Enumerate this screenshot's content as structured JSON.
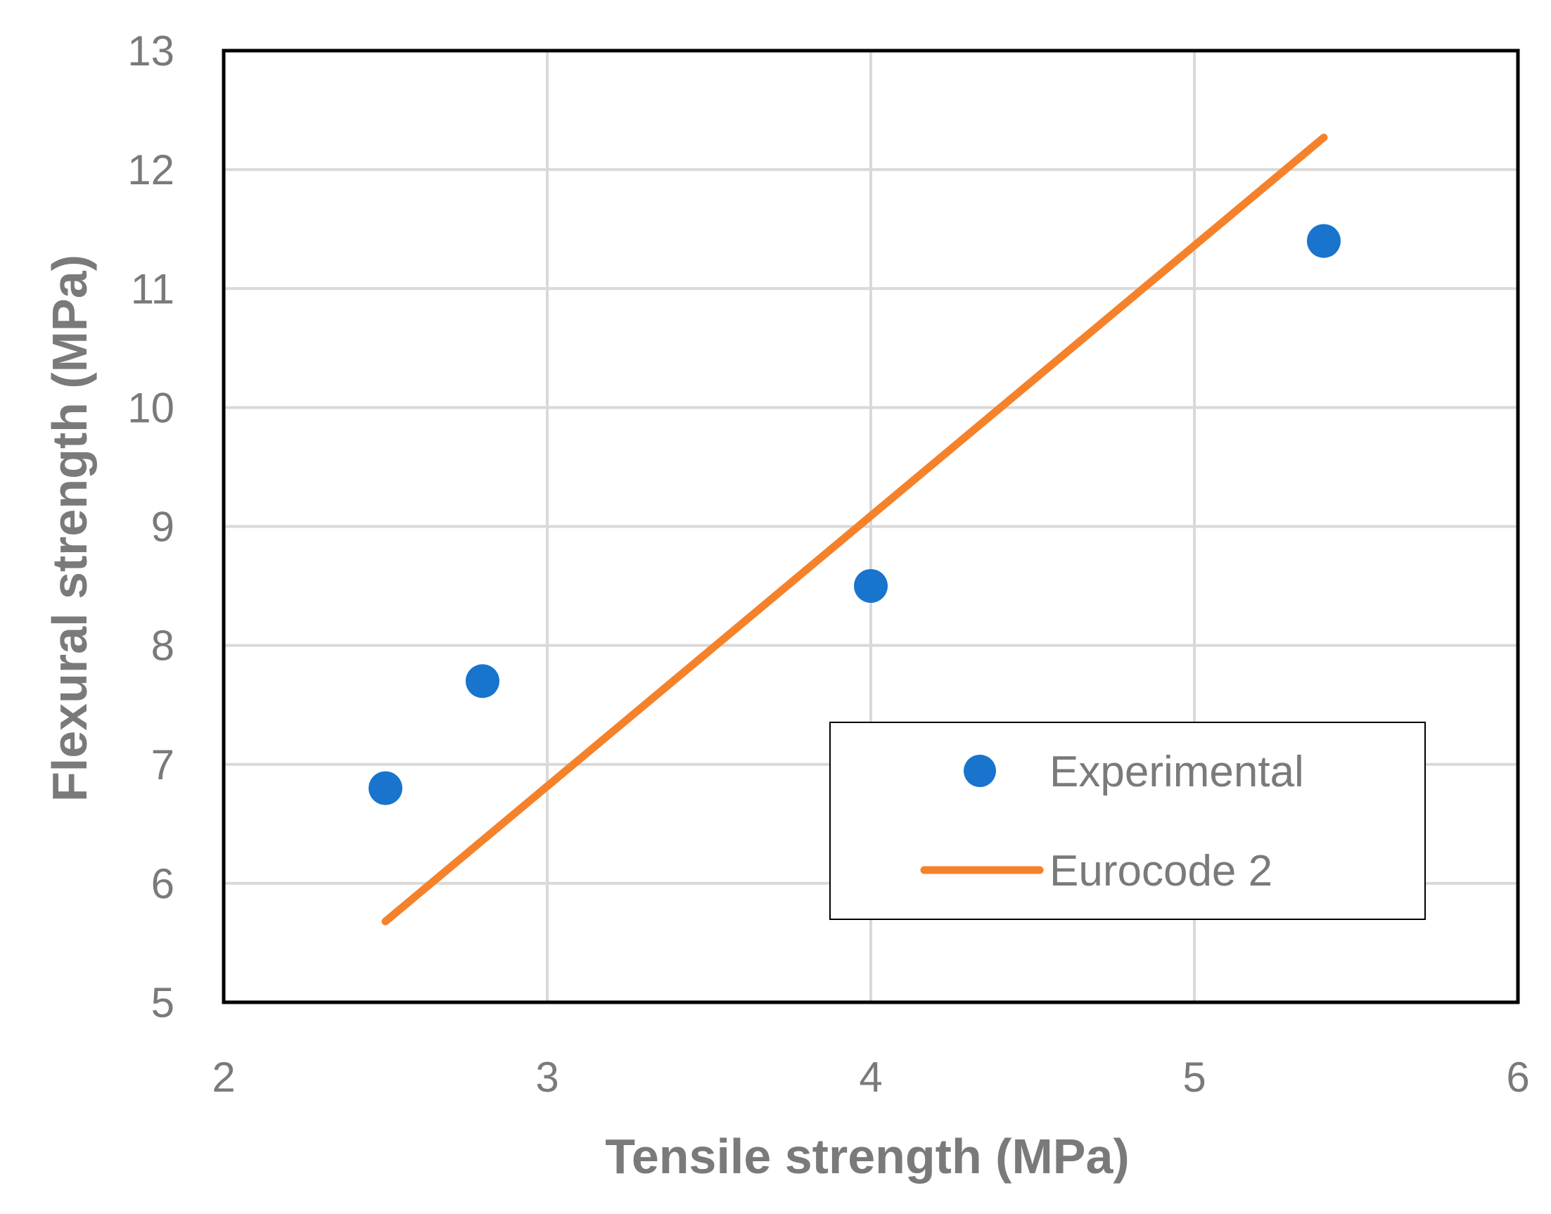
{
  "chart_data": {
    "type": "scatter",
    "title": "",
    "xlabel": "Tensile strength (MPa)",
    "ylabel": "Flexural strength (MPa)",
    "xlim": [
      2,
      6
    ],
    "ylim": [
      5,
      13
    ],
    "xticks": [
      2,
      3,
      4,
      5,
      6
    ],
    "yticks": [
      5,
      6,
      7,
      8,
      9,
      10,
      11,
      12,
      13
    ],
    "grid": true,
    "legend_position": "bottom-right",
    "series": [
      {
        "name": "Experimental",
        "kind": "scatter",
        "color": "#1874cd",
        "points": [
          {
            "x": 2.5,
            "y": 6.8
          },
          {
            "x": 2.8,
            "y": 7.7
          },
          {
            "x": 4.0,
            "y": 8.5
          },
          {
            "x": 5.4,
            "y": 11.4
          }
        ]
      },
      {
        "name": "Eurocode 2",
        "kind": "line",
        "color": "#f5822a",
        "points": [
          {
            "x": 2.5,
            "y": 5.68
          },
          {
            "x": 5.4,
            "y": 12.27
          }
        ]
      }
    ]
  }
}
